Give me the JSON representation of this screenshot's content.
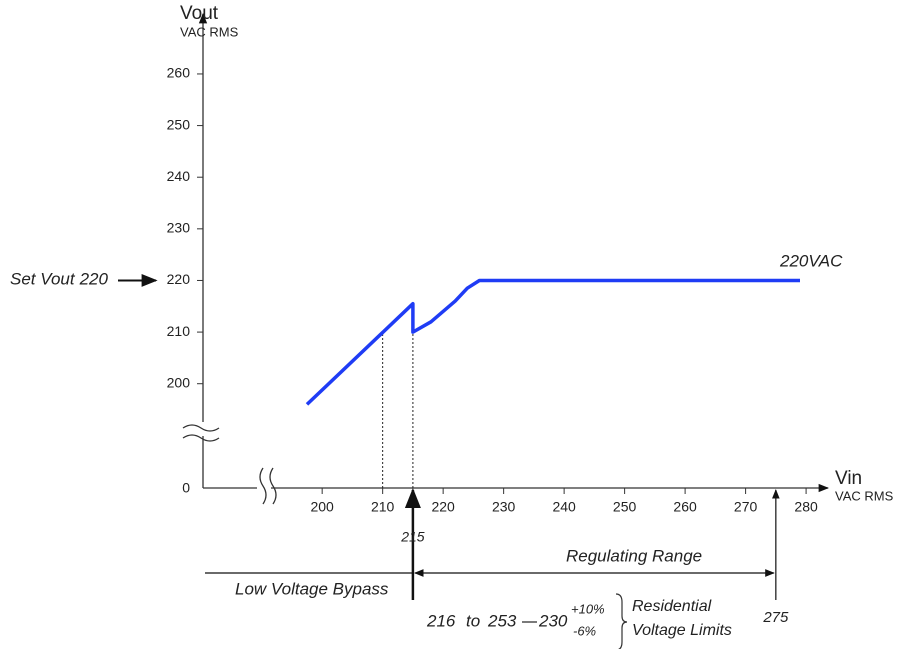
{
  "chart_data": {
    "type": "line",
    "y_label": "Vout",
    "y_unit": "VAC RMS",
    "x_label": "Vin",
    "x_unit": "VAC RMS",
    "axis_origin": 0,
    "x": [
      197.5,
      215,
      215,
      218,
      222,
      224,
      226,
      279
    ],
    "values": [
      196,
      215.5,
      210,
      212,
      216,
      218.5,
      220,
      220
    ],
    "color": "#1f3cf5",
    "xlim": [
      180.3,
      282.3
    ],
    "ylim": [
      179.8,
      272
    ],
    "xticks": [
      200,
      210,
      220,
      230,
      240,
      250,
      260,
      270,
      280
    ],
    "yticks": [
      200,
      210,
      220,
      230,
      240,
      250,
      260
    ],
    "line_label": "220VAC",
    "set_vout": {
      "label": "Set Vout",
      "value": 220
    },
    "guides_x": [
      210,
      215
    ],
    "bypass_point": 215,
    "range_end": 275,
    "regulating_label": "Regulating Range",
    "bypass_label": "Low Voltage Bypass",
    "limits": {
      "low": 216,
      "to": "to",
      "high": 253,
      "nominal": 230,
      "plus": "+10%",
      "minus": "-6%",
      "label_1": "Residential",
      "label_2": "Voltage Limits"
    }
  }
}
